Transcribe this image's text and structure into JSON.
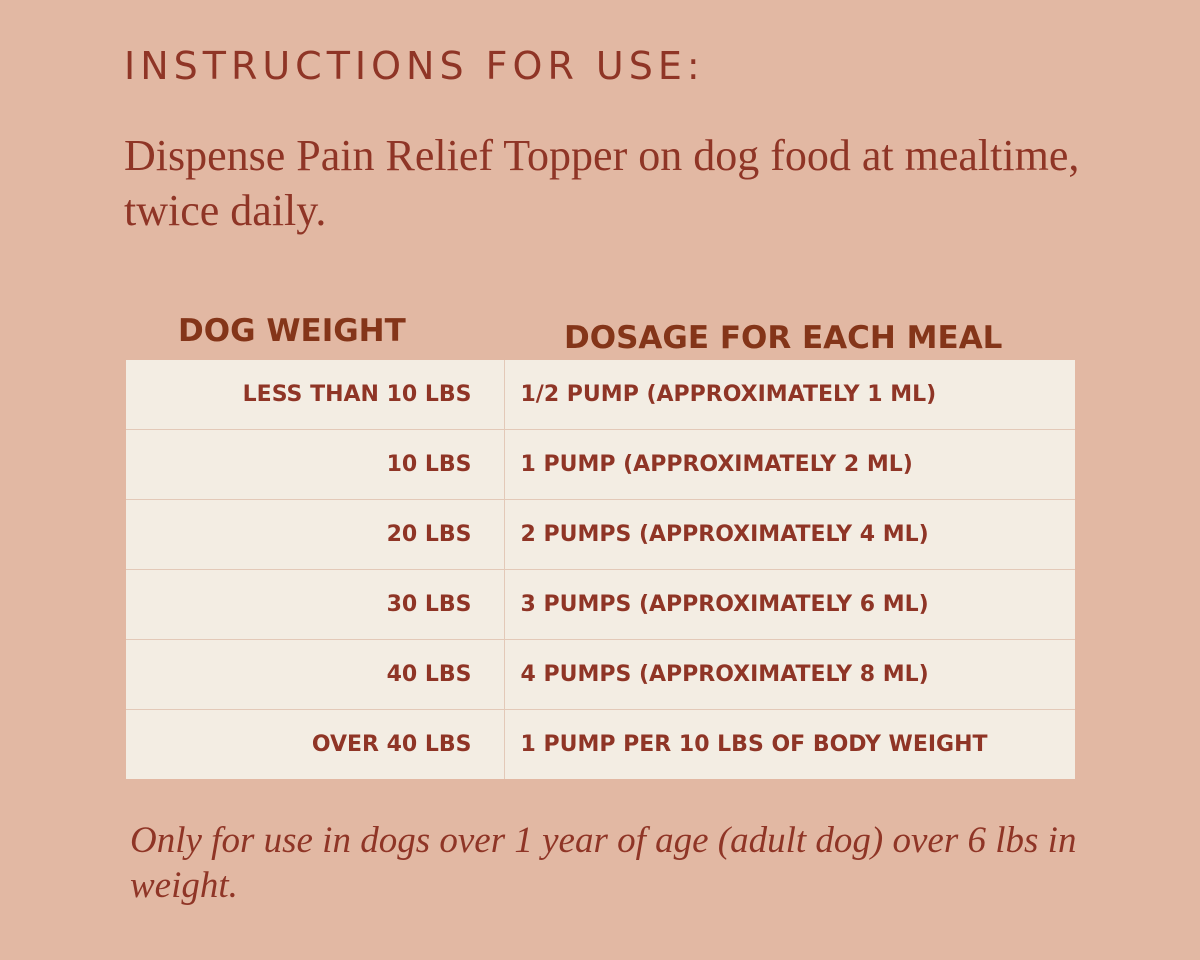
{
  "title": "INSTRUCTIONS FOR USE:",
  "intro": "Dispense Pain Relief Topper on dog food at mealtime, twice daily.",
  "table": {
    "headers": {
      "weight": "DOG WEIGHT",
      "dosage": "DOSAGE FOR EACH MEAL"
    },
    "rows": [
      {
        "weight": "LESS THAN 10 LBS",
        "dosage": "1/2 PUMP (APPROXIMATELY 1 ML)"
      },
      {
        "weight": "10 LBS",
        "dosage": "1 PUMP (APPROXIMATELY 2 ML)"
      },
      {
        "weight": "20 LBS",
        "dosage": "2 PUMPS (APPROXIMATELY 4 ML)"
      },
      {
        "weight": "30 LBS",
        "dosage": "3 PUMPS (APPROXIMATELY 6 ML)"
      },
      {
        "weight": "40 LBS",
        "dosage": "4 PUMPS (APPROXIMATELY 8 ML)"
      },
      {
        "weight": "OVER 40 LBS",
        "dosage": "1 PUMP PER 10 LBS OF BODY WEIGHT"
      }
    ]
  },
  "note": "Only for use in dogs over 1 year of age (adult dog) over 6 lbs in weight.",
  "colors": {
    "background": "#e2b8a3",
    "text": "#8f3526",
    "table_background": "#f3ede3"
  }
}
